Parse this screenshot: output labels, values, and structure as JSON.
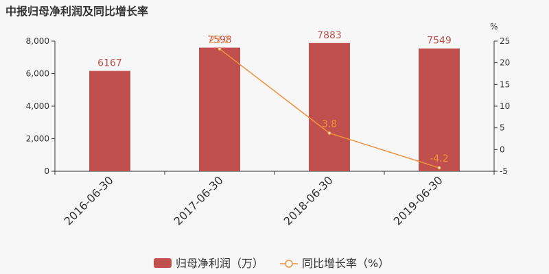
{
  "chart_data": {
    "type": "bar",
    "title": "中报归母净利润及同比增长率",
    "categories": [
      "2016-06-30",
      "2017-06-30",
      "2018-06-30",
      "2019-06-30"
    ],
    "series": [
      {
        "name": "归母净利润（万）",
        "type": "bar",
        "axis": "left",
        "values": [
          6167,
          7598,
          7883,
          7549
        ],
        "labels": [
          "6167",
          "7598",
          "7883",
          "7549"
        ],
        "color": "#c0504d"
      },
      {
        "name": "同比增长率（%）",
        "type": "line",
        "axis": "right",
        "values": [
          null,
          23.2,
          3.8,
          -4.2
        ],
        "labels": [
          "",
          "23.2",
          "3.8",
          "-4.2"
        ],
        "color": "#f0903a"
      }
    ],
    "y_left": {
      "ylim": [
        0,
        8000
      ],
      "ticks": [
        0,
        2000,
        4000,
        6000,
        8000
      ],
      "tick_labels": [
        "0",
        "2,000",
        "4,000",
        "6,000",
        "8,000"
      ]
    },
    "y_right": {
      "unit": "%",
      "ylim": [
        -5,
        25
      ],
      "ticks": [
        -5,
        0,
        5,
        10,
        15,
        20,
        25
      ],
      "tick_labels": [
        "-5",
        "0",
        "5",
        "10",
        "15",
        "20",
        "25"
      ]
    },
    "legend": {
      "position": "bottom"
    },
    "grid": false
  }
}
